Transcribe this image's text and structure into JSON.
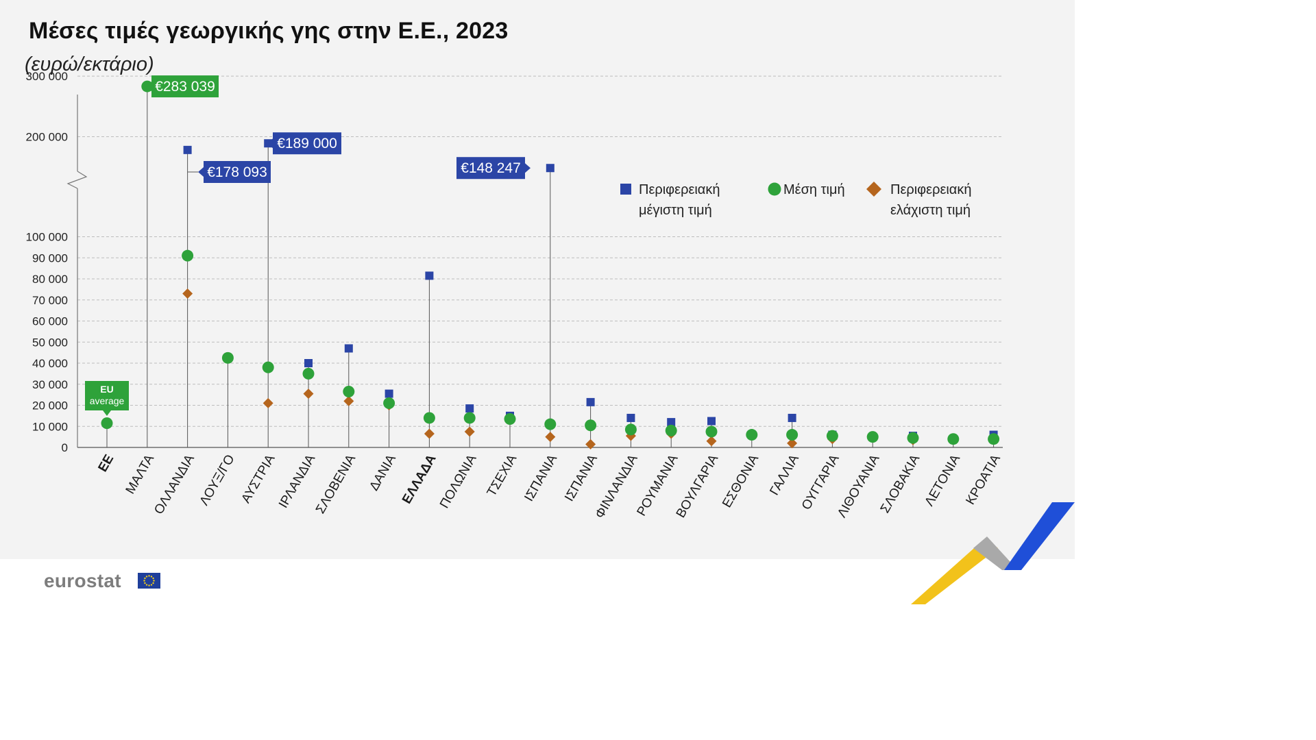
{
  "title": "Μέσες τιμές γεωργικής γης στην Ε.Ε., 2023",
  "subtitle": "(ευρώ/εκτάριο)",
  "logo": "eurostat",
  "colors": {
    "max": "#2b45a6",
    "avg": "#2ea23a",
    "min": "#b5651d",
    "callout_green": "#2ea23a",
    "callout_blue": "#2b45a6",
    "background": "#f3f3f3"
  },
  "chart_data": {
    "type": "scatter",
    "title": "Μέσες τιμές γεωργικής γης στην Ε.Ε., 2023",
    "ylabel": "(ευρώ/εκτάριο)",
    "ylim": [
      0,
      300000
    ],
    "y_axis_break": [
      100000,
      200000
    ],
    "y_ticks": [
      "0",
      "10 000",
      "20 000",
      "30 000",
      "40 000",
      "50 000",
      "60 000",
      "70 000",
      "80 000",
      "90 000",
      "100 000",
      "200 000",
      "300 000"
    ],
    "categories": [
      "ΕΕ",
      "ΜΑΛΤΑ",
      "ΟΛΛΑΝΔΙΑ",
      "ΛΟΥΞ/ΓΟ",
      "ΑΥΣΤΡΙΑ",
      "ΙΡΛΑΝΔΙΑ",
      "ΣΛΟΒΕΝΙΑ",
      "ΔΑΝΙΑ",
      "ΕΛΛΑΔΑ",
      "ΠΟΛΩΝΙΑ",
      "ΤΣΕΧΙΑ",
      "ΙΣΠΑΝΙΑ",
      "ΙΣΠΑΝΙΑ",
      "ΦΙΝΛΑΝΔΙΑ",
      "ΡΟΥΜΑΝΙΑ",
      "ΒΟΥΛΓΑΡΙΑ",
      "ΕΣΘΟΝΙΑ",
      "ΓΑΛΛΙΑ",
      "ΟΥΓΓΑΡΙΑ",
      "ΛΙΘΟΥΑΝΙΑ",
      "ΣΛΟΒΑΚΙΑ",
      "ΛΕΤΟΝΙΑ",
      "ΚΡΟΑΤΙΑ"
    ],
    "bold_categories": [
      "ΕΕ",
      "ΕΛΛΑΔΑ"
    ],
    "series": [
      {
        "name": "Περιφερειακή μέγιστη τιμή",
        "marker": "square",
        "values": [
          null,
          null,
          178093,
          null,
          189000,
          40000,
          47000,
          25500,
          81500,
          18500,
          15000,
          148247,
          21500,
          14000,
          12000,
          12500,
          null,
          14000,
          6000,
          null,
          5500,
          null,
          6000
        ]
      },
      {
        "name": "Μέση τιμή",
        "marker": "circle",
        "values": [
          11500,
          283039,
          91000,
          null,
          38000,
          35000,
          26500,
          21000,
          14000,
          14000,
          13500,
          11000,
          10500,
          8500,
          8000,
          7500,
          6000,
          6000,
          5500,
          5000,
          4500,
          4000,
          4000
        ]
      },
      {
        "name": "Περιφερειακή ελάχιστη τιμή",
        "marker": "diamond",
        "values": [
          null,
          null,
          73000,
          null,
          21000,
          25500,
          22000,
          20000,
          6500,
          7500,
          13500,
          5000,
          1500,
          5500,
          6500,
          3000,
          null,
          2000,
          4000,
          null,
          3500,
          null,
          4000
        ]
      }
    ],
    "extra_points": [
      {
        "category": "ΛΟΥΞ/ΓΟ",
        "series": "Μέση τιμή",
        "value": 42500
      }
    ],
    "callouts": [
      {
        "text": "€283 039",
        "category": "ΜΑΛΤΑ",
        "color": "green"
      },
      {
        "text": "€178 093",
        "category": "ΟΛΛΑΝΔΙΑ",
        "color": "blue"
      },
      {
        "text": "€189 000",
        "category": "ΑΥΣΤΡΙΑ",
        "color": "blue"
      },
      {
        "text": "€148 247",
        "category": "ΙΣΠΑΝΙΑ",
        "color": "blue"
      }
    ],
    "eu_badge": [
      "EU",
      "average"
    ],
    "legend": [
      {
        "label": [
          "Περιφερειακή",
          "μέγιστη τιμή"
        ],
        "marker": "square"
      },
      {
        "label": [
          "Μέση τιμή"
        ],
        "marker": "circle"
      },
      {
        "label": [
          "Περιφερειακή",
          "ελάχιστη τιμή"
        ],
        "marker": "diamond"
      }
    ],
    "legend_position": "top-right",
    "grid": true
  }
}
